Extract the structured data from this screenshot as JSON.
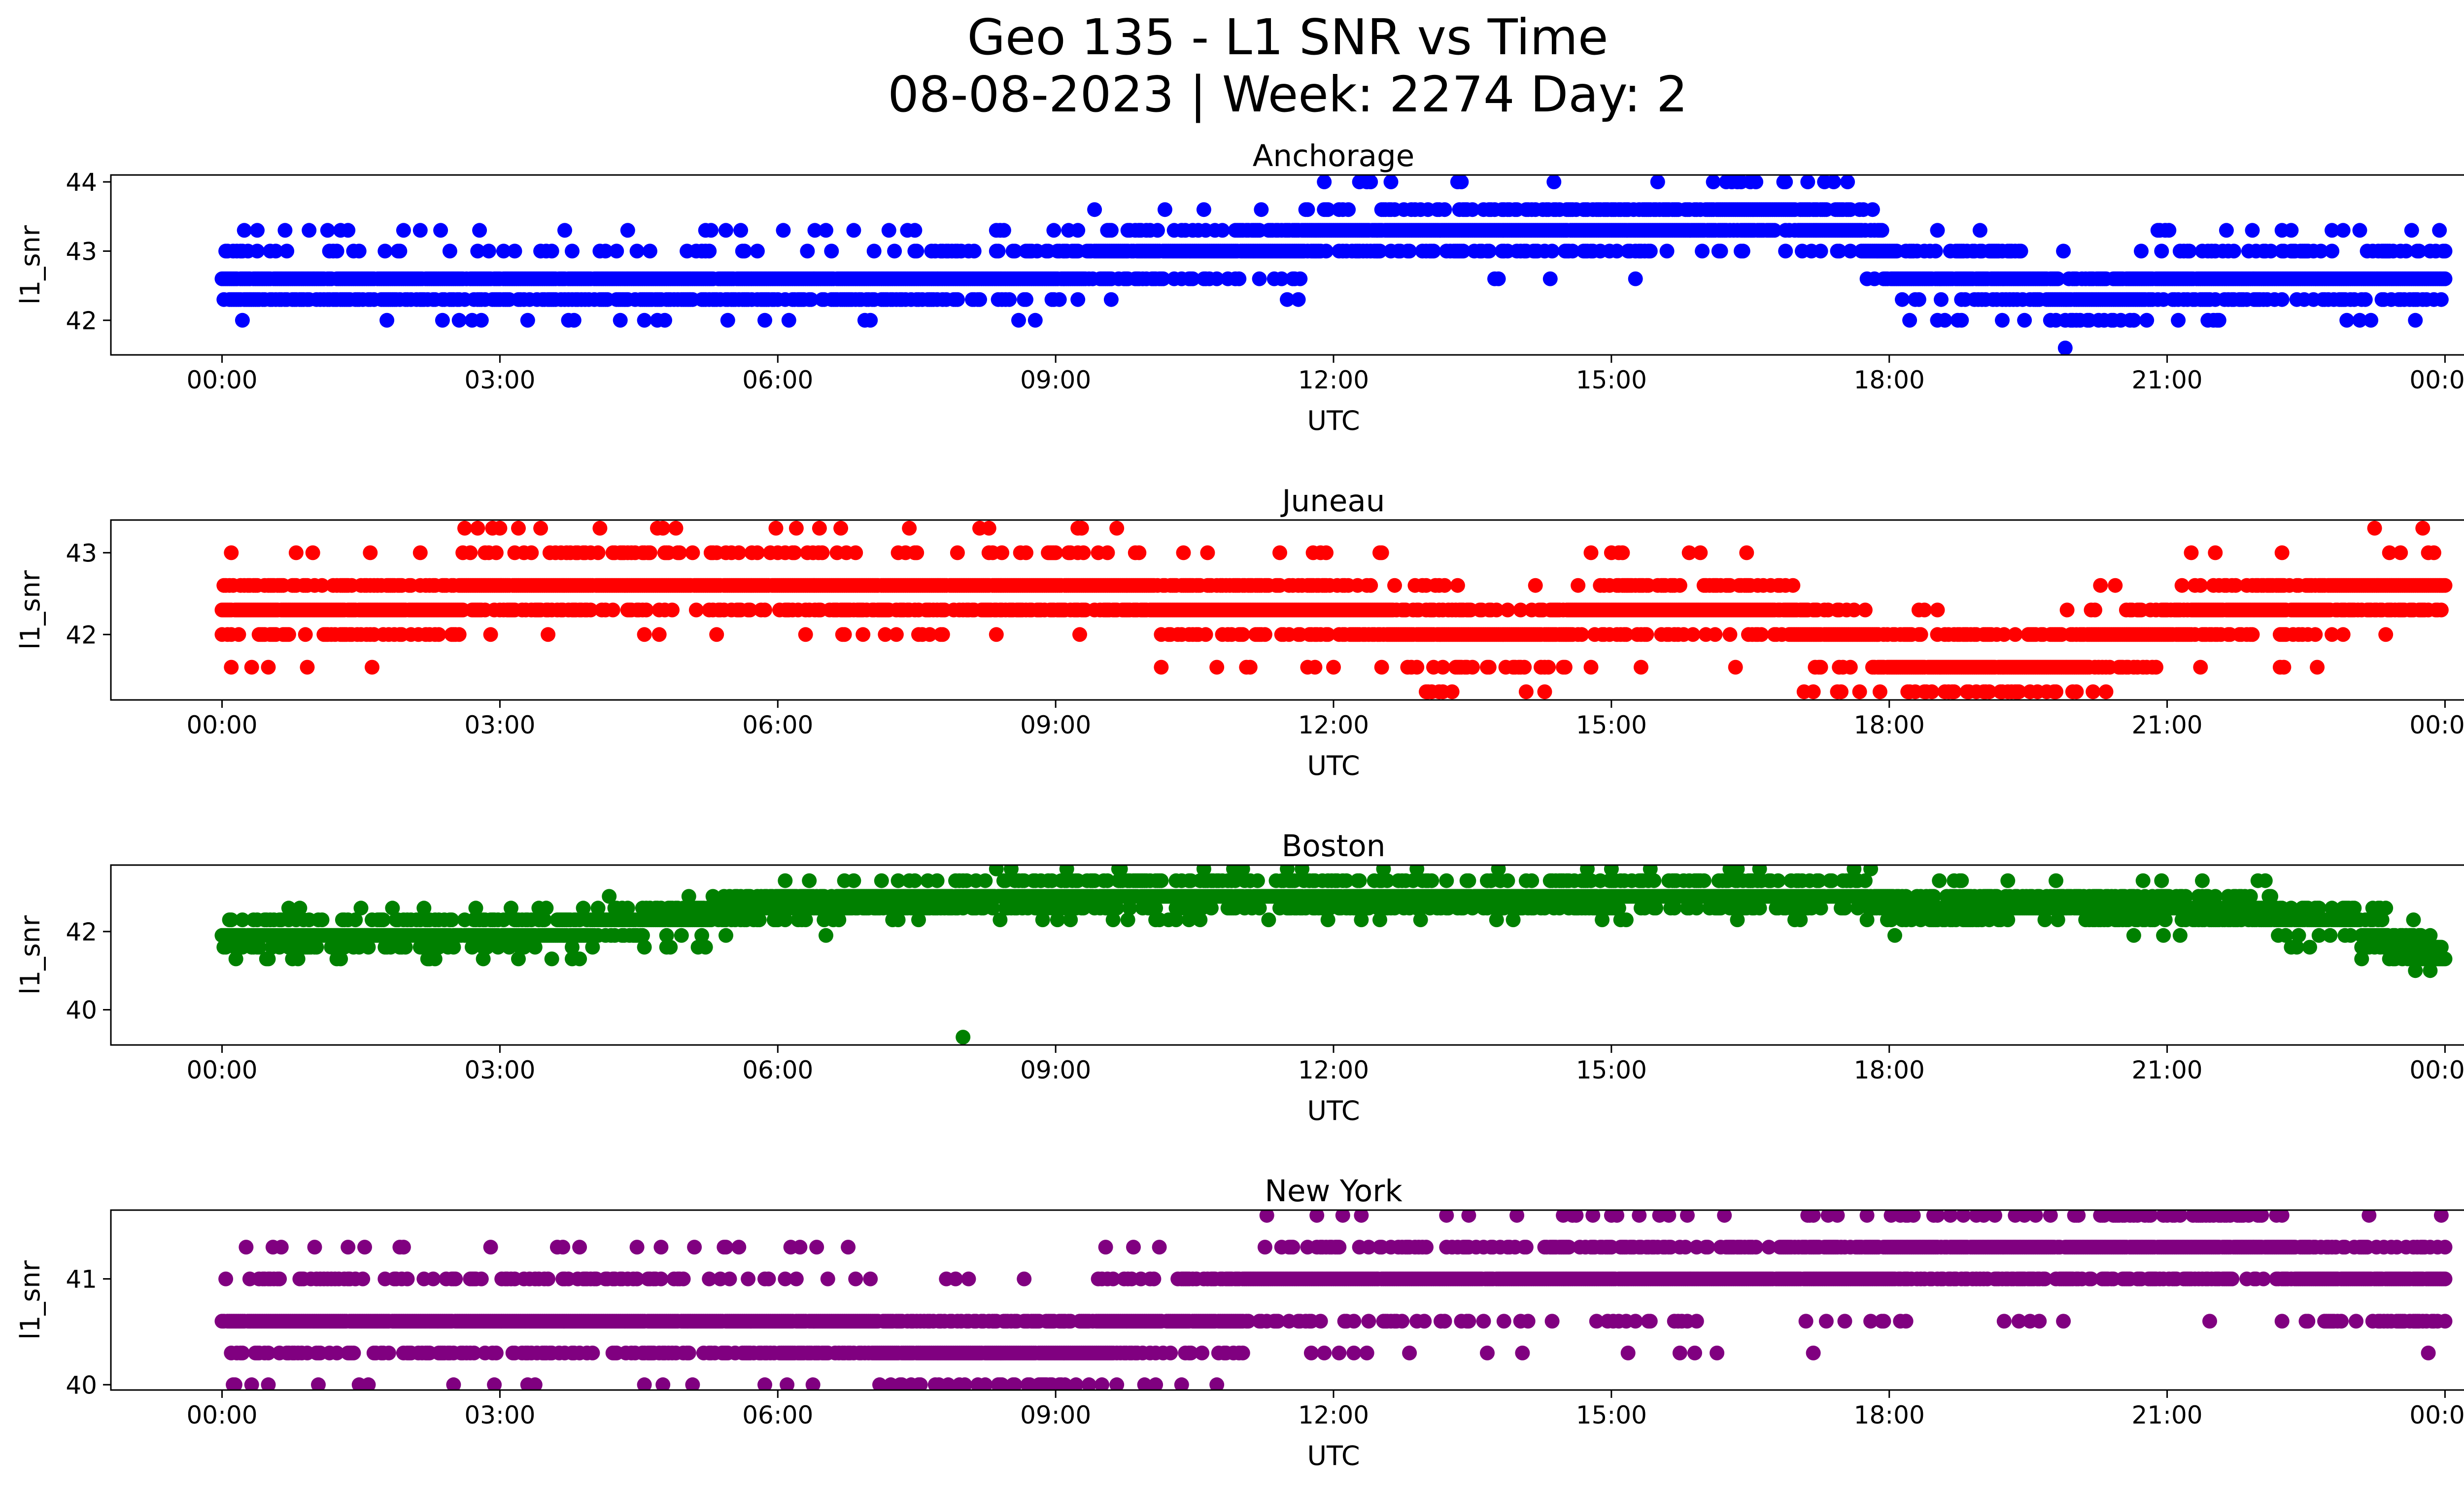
{
  "figure": {
    "title_line1": "Geo 135 - L1 SNR vs Time",
    "title_line2": "08-08-2023 | Week: 2274 Day: 2"
  },
  "chart_data": [
    {
      "type": "scatter",
      "title": "Anchorage",
      "xlabel": "UTC",
      "ylabel": "l1_snr",
      "color": "#0000ff",
      "xticks": [
        "00:00",
        "03:00",
        "06:00",
        "09:00",
        "12:00",
        "15:00",
        "18:00",
        "21:00",
        "00:00"
      ],
      "yticks": [
        42,
        43,
        44
      ],
      "xlim_hours": [
        -1.2,
        25.2
      ],
      "ylim": [
        41.5,
        44.1
      ],
      "levels": [
        42.0,
        42.3,
        42.6,
        43.0,
        43.3,
        43.6,
        44.0
      ],
      "profile": [
        [
          0,
          42.45
        ],
        [
          2,
          42.45
        ],
        [
          4,
          42.55
        ],
        [
          6,
          42.45
        ],
        [
          8,
          42.6
        ],
        [
          9,
          42.75
        ],
        [
          10,
          42.9
        ],
        [
          11,
          43.05
        ],
        [
          12,
          43.2
        ],
        [
          13,
          43.3
        ],
        [
          14,
          43.35
        ],
        [
          15,
          43.4
        ],
        [
          16,
          43.45
        ],
        [
          17,
          43.45
        ],
        [
          17.5,
          43.4
        ],
        [
          18,
          42.8
        ],
        [
          19,
          42.7
        ],
        [
          19.6,
          42.5
        ],
        [
          20,
          42.3
        ],
        [
          21,
          42.55
        ],
        [
          22,
          42.6
        ],
        [
          24,
          42.6
        ]
      ],
      "outliers": [
        [
          19.9,
          41.6
        ],
        [
          16.3,
          44.0
        ],
        [
          17.4,
          44.0
        ],
        [
          17.55,
          44.0
        ],
        [
          20.9,
          43.3
        ]
      ]
    },
    {
      "type": "scatter",
      "title": "Juneau",
      "xlabel": "UTC",
      "ylabel": "l1_snr",
      "color": "#ff0000",
      "xticks": [
        "00:00",
        "03:00",
        "06:00",
        "09:00",
        "12:00",
        "15:00",
        "18:00",
        "21:00",
        "00:00"
      ],
      "yticks": [
        42,
        43
      ],
      "xlim_hours": [
        -1.2,
        25.2
      ],
      "ylim": [
        41.2,
        43.4
      ],
      "levels": [
        41.3,
        41.6,
        42.0,
        42.3,
        42.6,
        43.0,
        43.3
      ],
      "profile": [
        [
          0,
          42.35
        ],
        [
          2,
          42.3
        ],
        [
          3,
          42.55
        ],
        [
          5,
          42.7
        ],
        [
          7,
          42.5
        ],
        [
          10,
          42.45
        ],
        [
          12,
          42.3
        ],
        [
          13,
          42.05
        ],
        [
          14,
          41.95
        ],
        [
          15,
          42.3
        ],
        [
          16,
          42.45
        ],
        [
          17,
          42.15
        ],
        [
          18,
          41.75
        ],
        [
          19,
          41.65
        ],
        [
          20,
          41.75
        ],
        [
          21,
          42.1
        ],
        [
          22,
          42.3
        ],
        [
          23,
          42.5
        ],
        [
          24,
          42.6
        ]
      ],
      "outliers": [
        [
          3.0,
          43.3
        ],
        [
          3.2,
          43.3
        ],
        [
          4.7,
          43.3
        ],
        [
          4.9,
          43.3
        ],
        [
          6.2,
          43.3
        ],
        [
          6.45,
          43.3
        ]
      ]
    },
    {
      "type": "scatter",
      "title": "Boston",
      "xlabel": "UTC",
      "ylabel": "l1_snr",
      "color": "#008000",
      "xticks": [
        "00:00",
        "03:00",
        "06:00",
        "09:00",
        "12:00",
        "15:00",
        "18:00",
        "21:00",
        "00:00"
      ],
      "yticks": [
        40,
        42
      ],
      "xlim_hours": [
        -1.2,
        25.2
      ],
      "ylim": [
        39.1,
        43.7
      ],
      "levels": [
        41.0,
        41.3,
        41.6,
        41.9,
        42.3,
        42.6,
        42.9,
        43.3,
        43.6
      ],
      "profile": [
        [
          0,
          41.9
        ],
        [
          2,
          41.95
        ],
        [
          3,
          42.0
        ],
        [
          4,
          42.1
        ],
        [
          5,
          42.35
        ],
        [
          6,
          42.7
        ],
        [
          8,
          42.85
        ],
        [
          10,
          43.0
        ],
        [
          12,
          42.95
        ],
        [
          14,
          42.95
        ],
        [
          16,
          43.0
        ],
        [
          17.5,
          42.9
        ],
        [
          18.5,
          42.55
        ],
        [
          19.5,
          42.75
        ],
        [
          21,
          42.65
        ],
        [
          22,
          42.5
        ],
        [
          23,
          42.2
        ],
        [
          23.5,
          41.6
        ],
        [
          24,
          41.4
        ]
      ],
      "outliers": [
        [
          8.0,
          39.3
        ],
        [
          0.15,
          41.3
        ],
        [
          2.3,
          41.3
        ],
        [
          10.6,
          43.6
        ],
        [
          11.5,
          43.6
        ],
        [
          17.8,
          43.6
        ],
        [
          15.0,
          43.6
        ]
      ]
    },
    {
      "type": "scatter",
      "title": "New York",
      "xlabel": "UTC",
      "ylabel": "l1_snr",
      "color": "#800080",
      "xticks": [
        "00:00",
        "03:00",
        "06:00",
        "09:00",
        "12:00",
        "15:00",
        "18:00",
        "21:00",
        "00:00"
      ],
      "yticks": [
        40,
        41
      ],
      "xlim_hours": [
        -1.2,
        25.2
      ],
      "ylim": [
        39.95,
        41.65
      ],
      "levels": [
        40.0,
        40.3,
        40.6,
        41.0,
        41.3,
        41.6
      ],
      "profile": [
        [
          0,
          40.6
        ],
        [
          3,
          40.6
        ],
        [
          4,
          40.65
        ],
        [
          6,
          40.5
        ],
        [
          8,
          40.4
        ],
        [
          9,
          40.35
        ],
        [
          10,
          40.55
        ],
        [
          11,
          40.8
        ],
        [
          12,
          40.95
        ],
        [
          14,
          41.0
        ],
        [
          16,
          41.1
        ],
        [
          18,
          41.15
        ],
        [
          20,
          41.2
        ],
        [
          22,
          41.25
        ],
        [
          23,
          41.0
        ],
        [
          24,
          40.8
        ]
      ],
      "outliers": [
        [
          0.55,
          41.3
        ],
        [
          1.0,
          41.3
        ],
        [
          2.9,
          41.3
        ],
        [
          12.1,
          41.6
        ],
        [
          12.3,
          41.6
        ],
        [
          15.3,
          41.6
        ]
      ]
    }
  ]
}
